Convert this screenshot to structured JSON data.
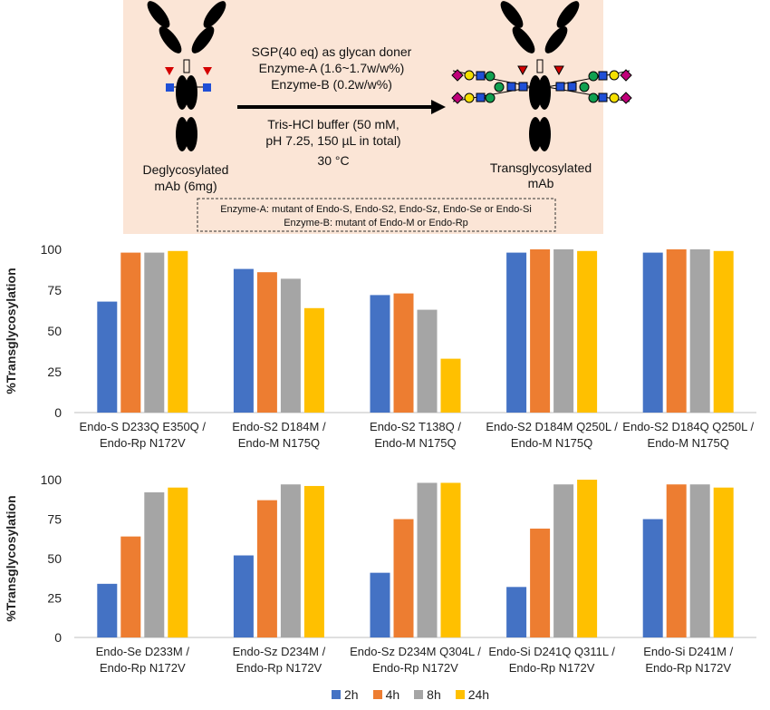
{
  "colors": {
    "scheme_bg": "#fbe5d6",
    "antibody": "#000000",
    "fucose": "#d40000",
    "glcnac": "#1f4fd6",
    "mannose": "#10a050",
    "galactose": "#f5e000",
    "sialic_acid": "#c0007a"
  },
  "scheme": {
    "left_label_line1": "Deglycosylated",
    "left_label_line2": "mAb (6mg)",
    "right_label_line1": "Transglycosylated",
    "right_label_line2": "mAb",
    "cond_line1": "SGP(40 eq) as glycan doner",
    "cond_line2": "Enzyme-A (1.6~1.7w/w%)",
    "cond_line3": "Enzyme-B (0.2w/w%)",
    "cond_line4": "Tris-HCl buffer (50 mM,",
    "cond_line5": "pH 7.25, 150 µL in total)",
    "temp": "30 °C",
    "note_line1": "Enzyme-A:  mutant of Endo-S, Endo-S2, Endo-Sz, Endo-Se or Endo-Si",
    "note_line2": "Enzyme-B: mutant of Endo-M or Endo-Rp"
  },
  "chart_data": [
    {
      "type": "bar",
      "ylabel": "%Transglycosylation",
      "ylim": [
        0,
        100
      ],
      "yticks": [
        0,
        25,
        50,
        75,
        100
      ],
      "categories": [
        [
          "Endo-S D233Q E350Q /",
          "Endo-Rp N172V"
        ],
        [
          "Endo-S2 D184M /",
          "Endo-M N175Q"
        ],
        [
          "Endo-S2 T138Q /",
          "Endo-M N175Q"
        ],
        [
          "Endo-S2 D184M Q250L /",
          "Endo-M N175Q"
        ],
        [
          "Endo-S2 D184Q Q250L /",
          "Endo-M N175Q"
        ]
      ],
      "series": [
        {
          "name": "2h",
          "color": "#4472c4",
          "values": [
            68,
            88,
            72,
            98,
            98
          ]
        },
        {
          "name": "4h",
          "color": "#ed7d31",
          "values": [
            98,
            86,
            73,
            100,
            100
          ]
        },
        {
          "name": "8h",
          "color": "#a5a5a5",
          "values": [
            98,
            82,
            63,
            100,
            100
          ]
        },
        {
          "name": "24h",
          "color": "#ffc000",
          "values": [
            99,
            64,
            33,
            99,
            99
          ]
        }
      ]
    },
    {
      "type": "bar",
      "ylabel": "%Transglycosylation",
      "ylim": [
        0,
        100
      ],
      "yticks": [
        0,
        25,
        50,
        75,
        100
      ],
      "categories": [
        [
          "Endo-Se D233M /",
          "Endo-Rp N172V"
        ],
        [
          "Endo-Sz D234M /",
          "Endo-Rp N172V"
        ],
        [
          "Endo-Sz D234M Q304L /",
          "Endo-Rp N172V"
        ],
        [
          "Endo-Si D241Q Q311L /",
          "Endo-Rp N172V"
        ],
        [
          "Endo-Si D241M /",
          "Endo-Rp N172V"
        ]
      ],
      "series": [
        {
          "name": "2h",
          "color": "#4472c4",
          "values": [
            34,
            52,
            41,
            32,
            75
          ]
        },
        {
          "name": "4h",
          "color": "#ed7d31",
          "values": [
            64,
            87,
            75,
            69,
            97
          ]
        },
        {
          "name": "8h",
          "color": "#a5a5a5",
          "values": [
            92,
            97,
            98,
            97,
            97
          ]
        },
        {
          "name": "24h",
          "color": "#ffc000",
          "values": [
            95,
            96,
            98,
            100,
            95
          ]
        }
      ]
    }
  ],
  "legend": [
    {
      "label": "2h",
      "color": "#4472c4"
    },
    {
      "label": "4h",
      "color": "#ed7d31"
    },
    {
      "label": "8h",
      "color": "#a5a5a5"
    },
    {
      "label": "24h",
      "color": "#ffc000"
    }
  ]
}
